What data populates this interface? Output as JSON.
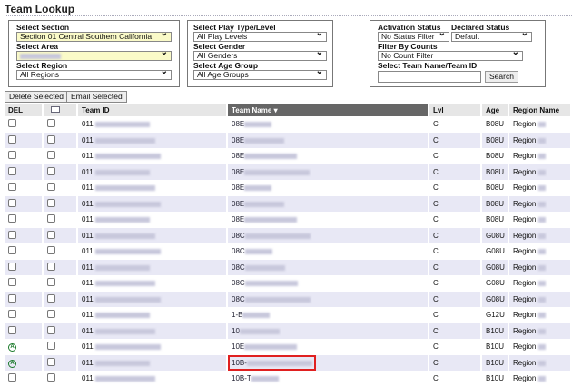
{
  "title": "Team Lookup",
  "filters": {
    "section_label": "Select Section",
    "section_value": "Section 01 Central Southern California",
    "area_label": "Select Area",
    "region_label": "Select Region",
    "region_value": "All Regions",
    "play_label": "Select Play Type/Level",
    "play_value": "All Play Levels",
    "gender_label": "Select Gender",
    "gender_value": "All Genders",
    "age_label": "Select Age Group",
    "age_value": "All Age Groups",
    "activation_label": "Activation Status",
    "activation_value": "No Status Filter",
    "declared_label": "Declared Status",
    "declared_value": "Default",
    "counts_label": "Filter By Counts",
    "counts_value": "No Count Filter",
    "search_label": "Select Team Name/Team ID",
    "search_value": "",
    "search_button": "Search"
  },
  "actions": {
    "delete": "Delete Selected",
    "email": "Email Selected"
  },
  "columns": [
    "DEL",
    "",
    "Team ID",
    "Team Name",
    "Lvl",
    "Age",
    "Region Name"
  ],
  "rows": [
    {
      "id": "011",
      "name": "08E",
      "lvl": "C",
      "age": "B08U",
      "region": "Region",
      "active": false
    },
    {
      "id": "011",
      "name": "08E",
      "lvl": "C",
      "age": "B08U",
      "region": "Region",
      "active": false
    },
    {
      "id": "011",
      "name": "08E",
      "lvl": "C",
      "age": "B08U",
      "region": "Region",
      "active": false
    },
    {
      "id": "011",
      "name": "08E",
      "lvl": "C",
      "age": "B08U",
      "region": "Region",
      "active": false
    },
    {
      "id": "011",
      "name": "08E",
      "lvl": "C",
      "age": "B08U",
      "region": "Region",
      "active": false
    },
    {
      "id": "011",
      "name": "08E",
      "lvl": "C",
      "age": "B08U",
      "region": "Region",
      "active": false
    },
    {
      "id": "011",
      "name": "08E",
      "lvl": "C",
      "age": "B08U",
      "region": "Region",
      "active": false
    },
    {
      "id": "011",
      "name": "08C",
      "lvl": "C",
      "age": "G08U",
      "region": "Region",
      "active": false
    },
    {
      "id": "011",
      "name": "08C",
      "lvl": "C",
      "age": "G08U",
      "region": "Region",
      "active": false
    },
    {
      "id": "011",
      "name": "08C",
      "lvl": "C",
      "age": "G08U",
      "region": "Region",
      "active": false
    },
    {
      "id": "011",
      "name": "08C",
      "lvl": "C",
      "age": "G08U",
      "region": "Region",
      "active": false
    },
    {
      "id": "011",
      "name": "08C",
      "lvl": "C",
      "age": "G08U",
      "region": "Region",
      "active": false
    },
    {
      "id": "011",
      "name": "1-B",
      "lvl": "C",
      "age": "G12U",
      "region": "Region",
      "active": false
    },
    {
      "id": "011",
      "name": "10",
      "lvl": "C",
      "age": "B10U",
      "region": "Region",
      "active": false
    },
    {
      "id": "011",
      "name": "10E",
      "lvl": "C",
      "age": "B10U",
      "region": "Region",
      "active": true
    },
    {
      "id": "011",
      "name": "10B-",
      "lvl": "C",
      "age": "B10U",
      "region": "Region",
      "active": true,
      "highlight": true
    },
    {
      "id": "011",
      "name": "10B-T",
      "lvl": "C",
      "age": "B10U",
      "region": "Region",
      "active": false
    }
  ]
}
